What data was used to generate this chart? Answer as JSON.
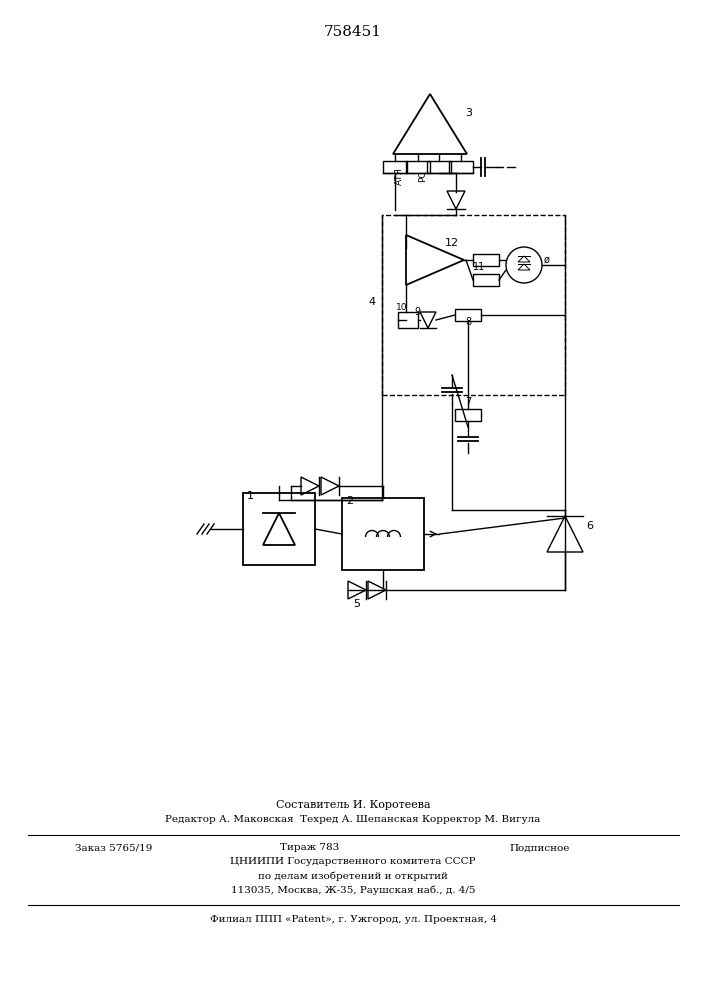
{
  "title_number": "758451",
  "background_color": "#ffffff",
  "line_color": "#000000",
  "footer_lines": [
    "Составитель И. Коротеева",
    "Редактор А. Маковская  Техред А. Шепанская Корректор М. Вигула",
    "Заказ 5765/19",
    "Тираж 783",
    "Подписное",
    "ЦНИИПИ Государственного комитета СССР",
    "по делам изобретений и открытий",
    "113035, Москва, Ж-35, Раушская наб., д. 4/5",
    "Филиал ППП «Patent», г. Ужгород, ул. Проектная, 4"
  ]
}
